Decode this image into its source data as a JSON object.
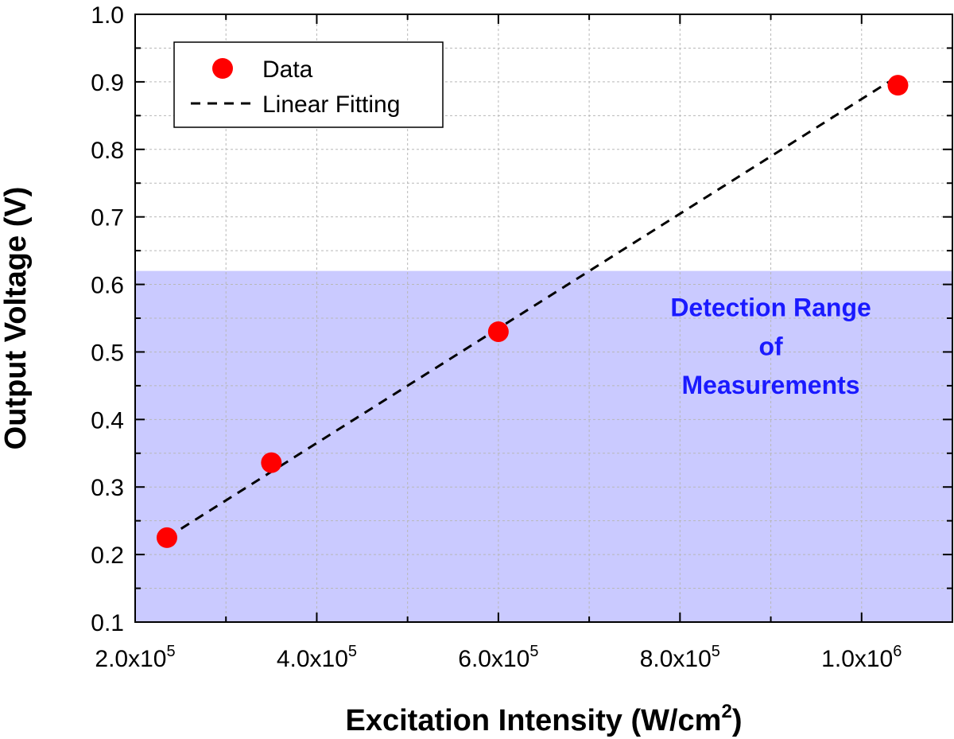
{
  "chart_data": {
    "type": "scatter",
    "xlabel": "Excitation Intensity (W/cm",
    "xlabel_sup": "2",
    "xlabel_end": ")",
    "ylabel": "Output Voltage (V)",
    "xlim": [
      200000,
      1100000
    ],
    "ylim": [
      0.1,
      1.0
    ],
    "grid": true,
    "x_ticks": [
      {
        "value": 200000,
        "base": "2.0x10",
        "exp": "5"
      },
      {
        "value": 400000,
        "base": "4.0x10",
        "exp": "5"
      },
      {
        "value": 600000,
        "base": "6.0x10",
        "exp": "5"
      },
      {
        "value": 800000,
        "base": "8.0x10",
        "exp": "5"
      },
      {
        "value": 1000000,
        "base": "1.0x10",
        "exp": "6"
      }
    ],
    "y_ticks": [
      {
        "value": 0.1,
        "label": "0.1"
      },
      {
        "value": 0.2,
        "label": "0.2"
      },
      {
        "value": 0.3,
        "label": "0.3"
      },
      {
        "value": 0.4,
        "label": "0.4"
      },
      {
        "value": 0.5,
        "label": "0.5"
      },
      {
        "value": 0.6,
        "label": "0.6"
      },
      {
        "value": 0.7,
        "label": "0.7"
      },
      {
        "value": 0.8,
        "label": "0.8"
      },
      {
        "value": 0.9,
        "label": "0.9"
      },
      {
        "value": 1.0,
        "label": "1.0"
      }
    ],
    "series": [
      {
        "name": "Data",
        "kind": "scatter",
        "color": "#ff0000",
        "x": [
          235000,
          350000,
          600000,
          1040000
        ],
        "y": [
          0.225,
          0.336,
          0.53,
          0.895
        ]
      },
      {
        "name": "Linear Fitting",
        "kind": "line",
        "style": "dashed",
        "color": "#000000",
        "x": [
          235000,
          1030000
        ],
        "y": [
          0.225,
          0.9
        ]
      }
    ],
    "shaded_region": {
      "y_from": 0.1,
      "y_to": 0.62,
      "color": "#8080ff",
      "opacity": 0.42
    },
    "annotation": {
      "lines": [
        "Detection Range",
        "of",
        "Measurements"
      ],
      "color": "#1a1aff",
      "x": 900000,
      "y": [
        0.553,
        0.495,
        0.438
      ]
    },
    "legend": {
      "position": "top-left",
      "entries": [
        "Data",
        "Linear Fitting"
      ]
    }
  }
}
